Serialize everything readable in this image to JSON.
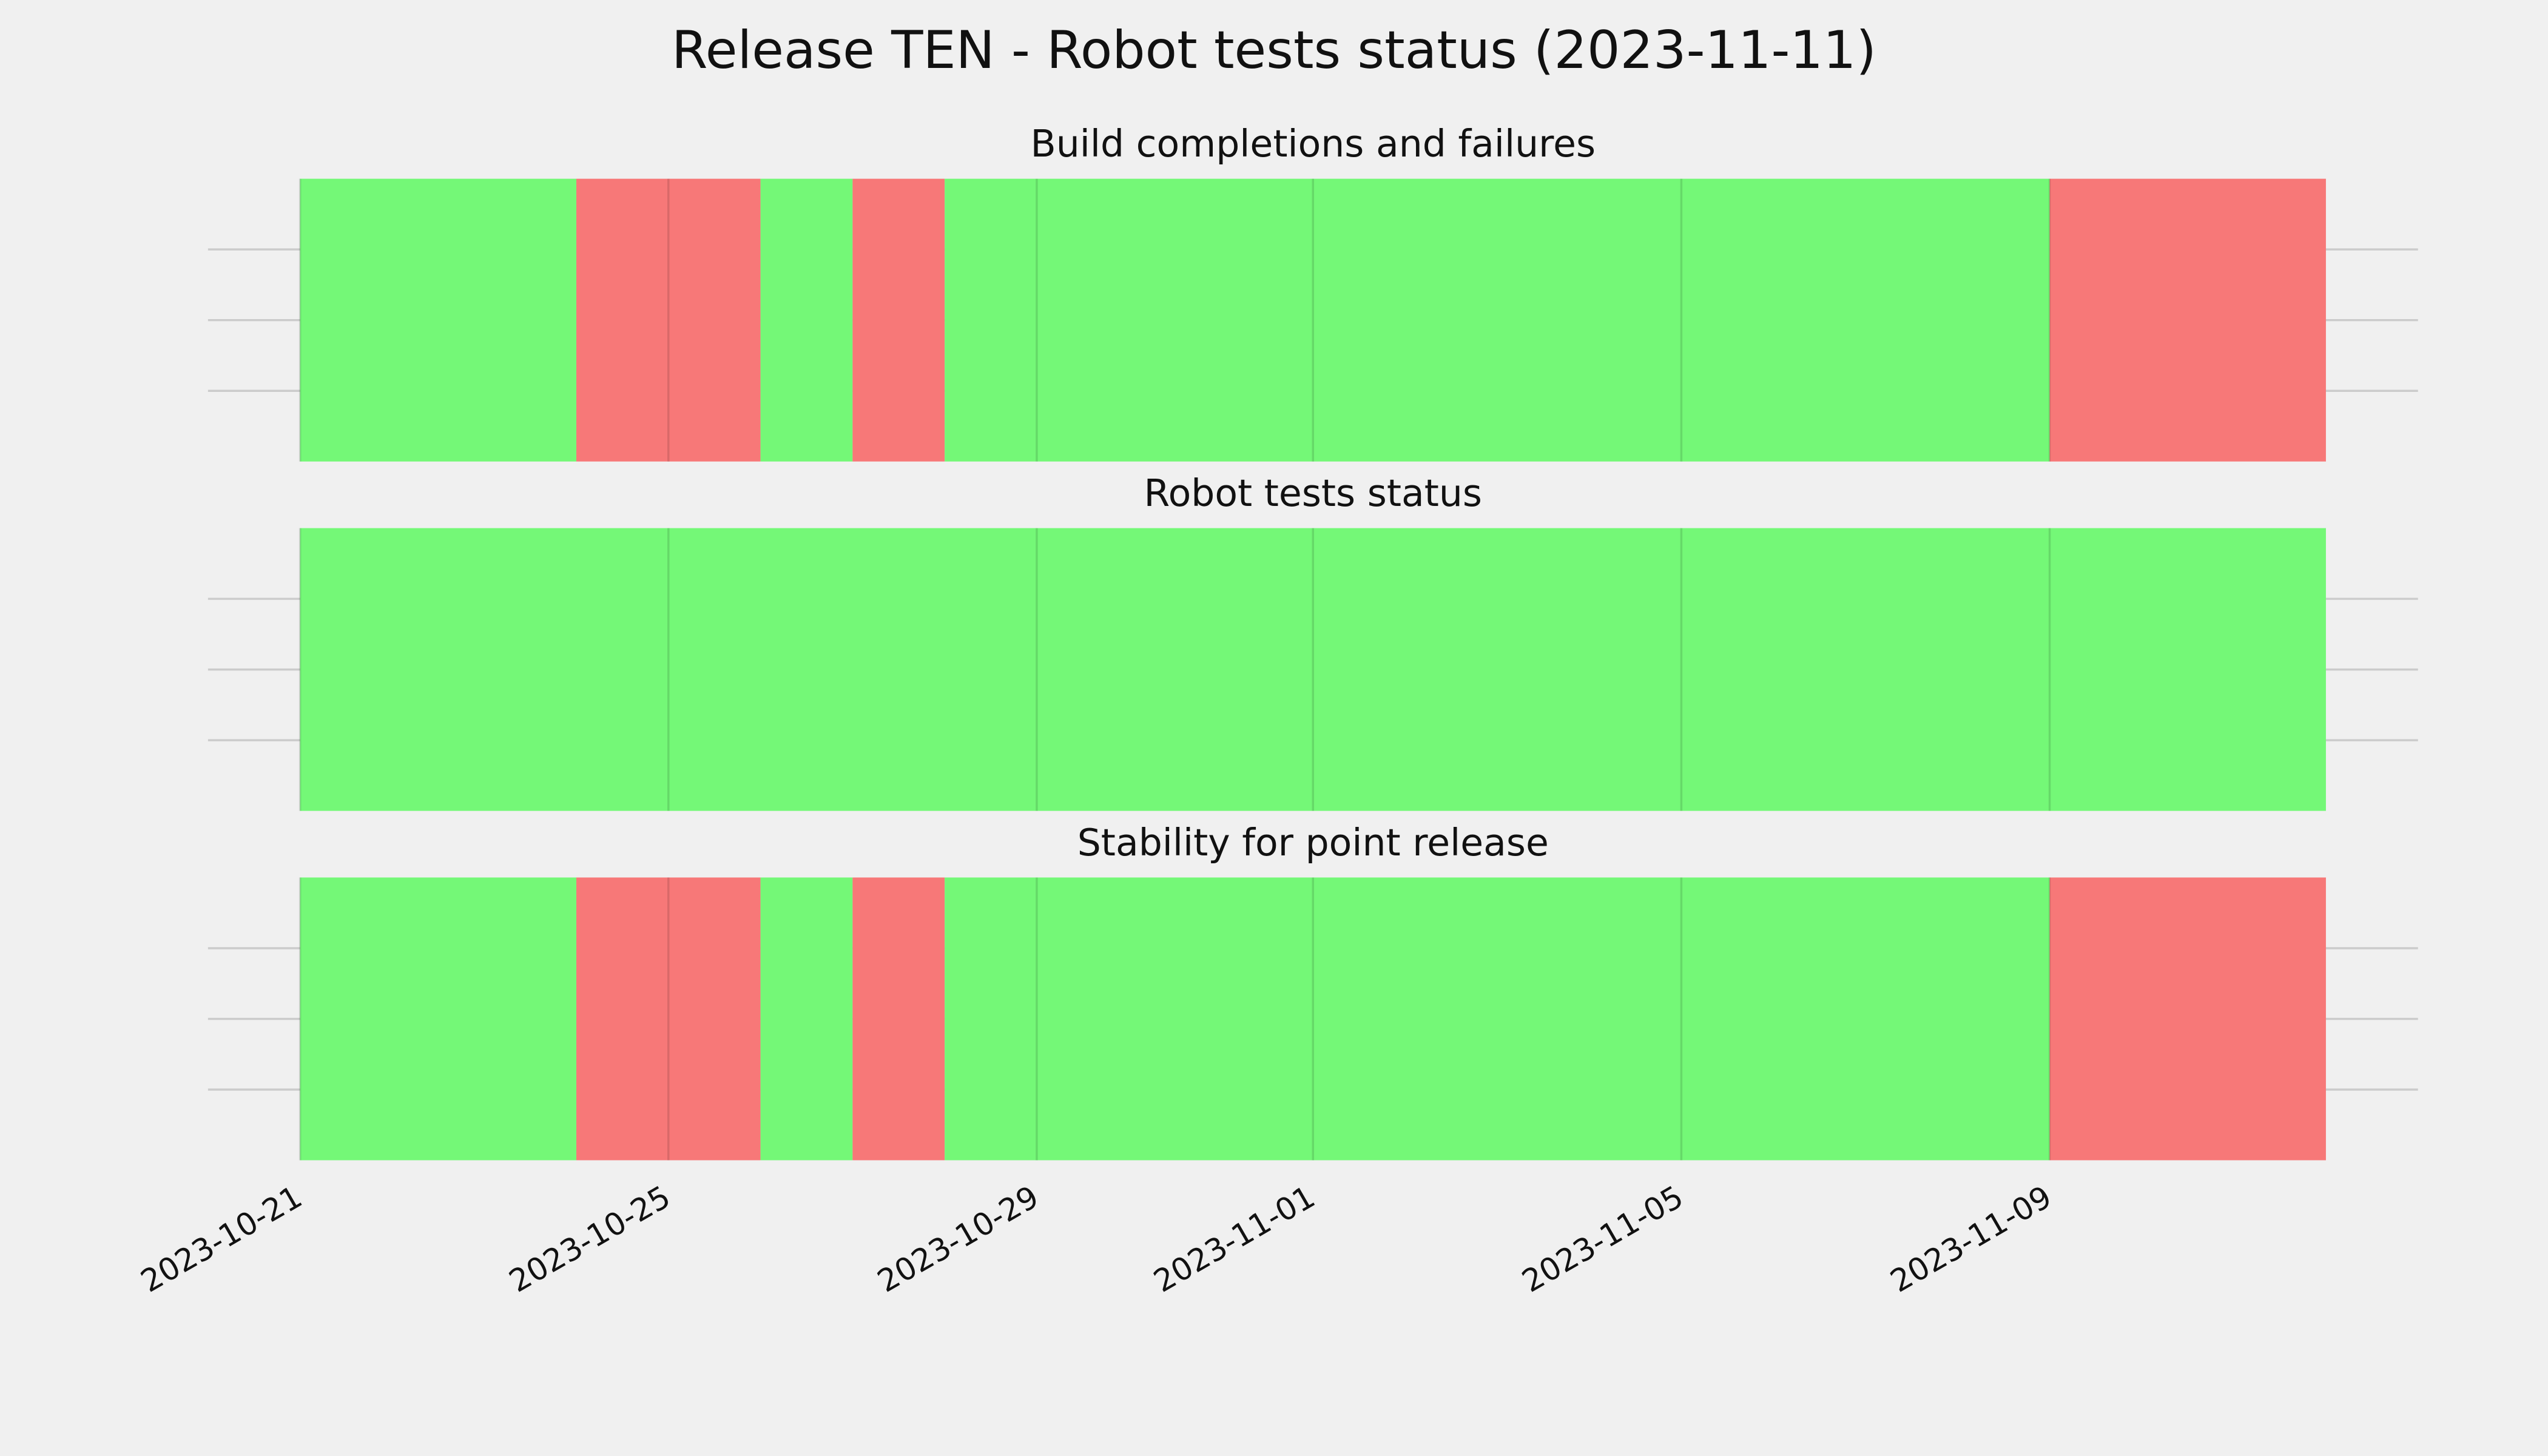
{
  "title": "Release TEN - Robot tests status (2023-11-11)",
  "chart_data": [
    {
      "type": "timeline",
      "title": "Build completions and failures",
      "spans": [
        {
          "start": "2023-10-21",
          "end": "2023-10-24",
          "color": "#74f877"
        },
        {
          "start": "2023-10-24",
          "end": "2023-10-26",
          "color": "#f77878"
        },
        {
          "start": "2023-10-26",
          "end": "2023-10-27",
          "color": "#74f877"
        },
        {
          "start": "2023-10-27",
          "end": "2023-10-28",
          "color": "#f77878"
        },
        {
          "start": "2023-10-28",
          "end": "2023-11-09",
          "color": "#74f877"
        },
        {
          "start": "2023-11-09",
          "end": "2023-11-12",
          "color": "#f77878"
        }
      ],
      "xlim": [
        "2023-10-20",
        "2023-11-13"
      ],
      "ylim": [
        0,
        1
      ],
      "yticks": [
        0.25,
        0.5,
        0.75
      ],
      "grid": true
    },
    {
      "type": "timeline",
      "title": "Robot tests status",
      "spans": [
        {
          "start": "2023-10-21",
          "end": "2023-11-12",
          "color": "#74f877"
        }
      ],
      "xlim": [
        "2023-10-20",
        "2023-11-13"
      ],
      "ylim": [
        0,
        1
      ],
      "yticks": [
        0.25,
        0.5,
        0.75
      ],
      "grid": true
    },
    {
      "type": "timeline",
      "title": "Stability for point release",
      "spans": [
        {
          "start": "2023-10-21",
          "end": "2023-10-24",
          "color": "#74f877"
        },
        {
          "start": "2023-10-24",
          "end": "2023-10-26",
          "color": "#f77878"
        },
        {
          "start": "2023-10-26",
          "end": "2023-10-27",
          "color": "#74f877"
        },
        {
          "start": "2023-10-27",
          "end": "2023-10-28",
          "color": "#f77878"
        },
        {
          "start": "2023-10-28",
          "end": "2023-11-09",
          "color": "#74f877"
        },
        {
          "start": "2023-11-09",
          "end": "2023-11-12",
          "color": "#f77878"
        }
      ],
      "xlim": [
        "2023-10-20",
        "2023-11-13"
      ],
      "ylim": [
        0,
        1
      ],
      "yticks": [
        0.25,
        0.5,
        0.75
      ],
      "grid": true,
      "xticks": [
        "2023-10-21",
        "2023-10-25",
        "2023-10-29",
        "2023-11-01",
        "2023-11-05",
        "2023-11-09"
      ]
    }
  ]
}
